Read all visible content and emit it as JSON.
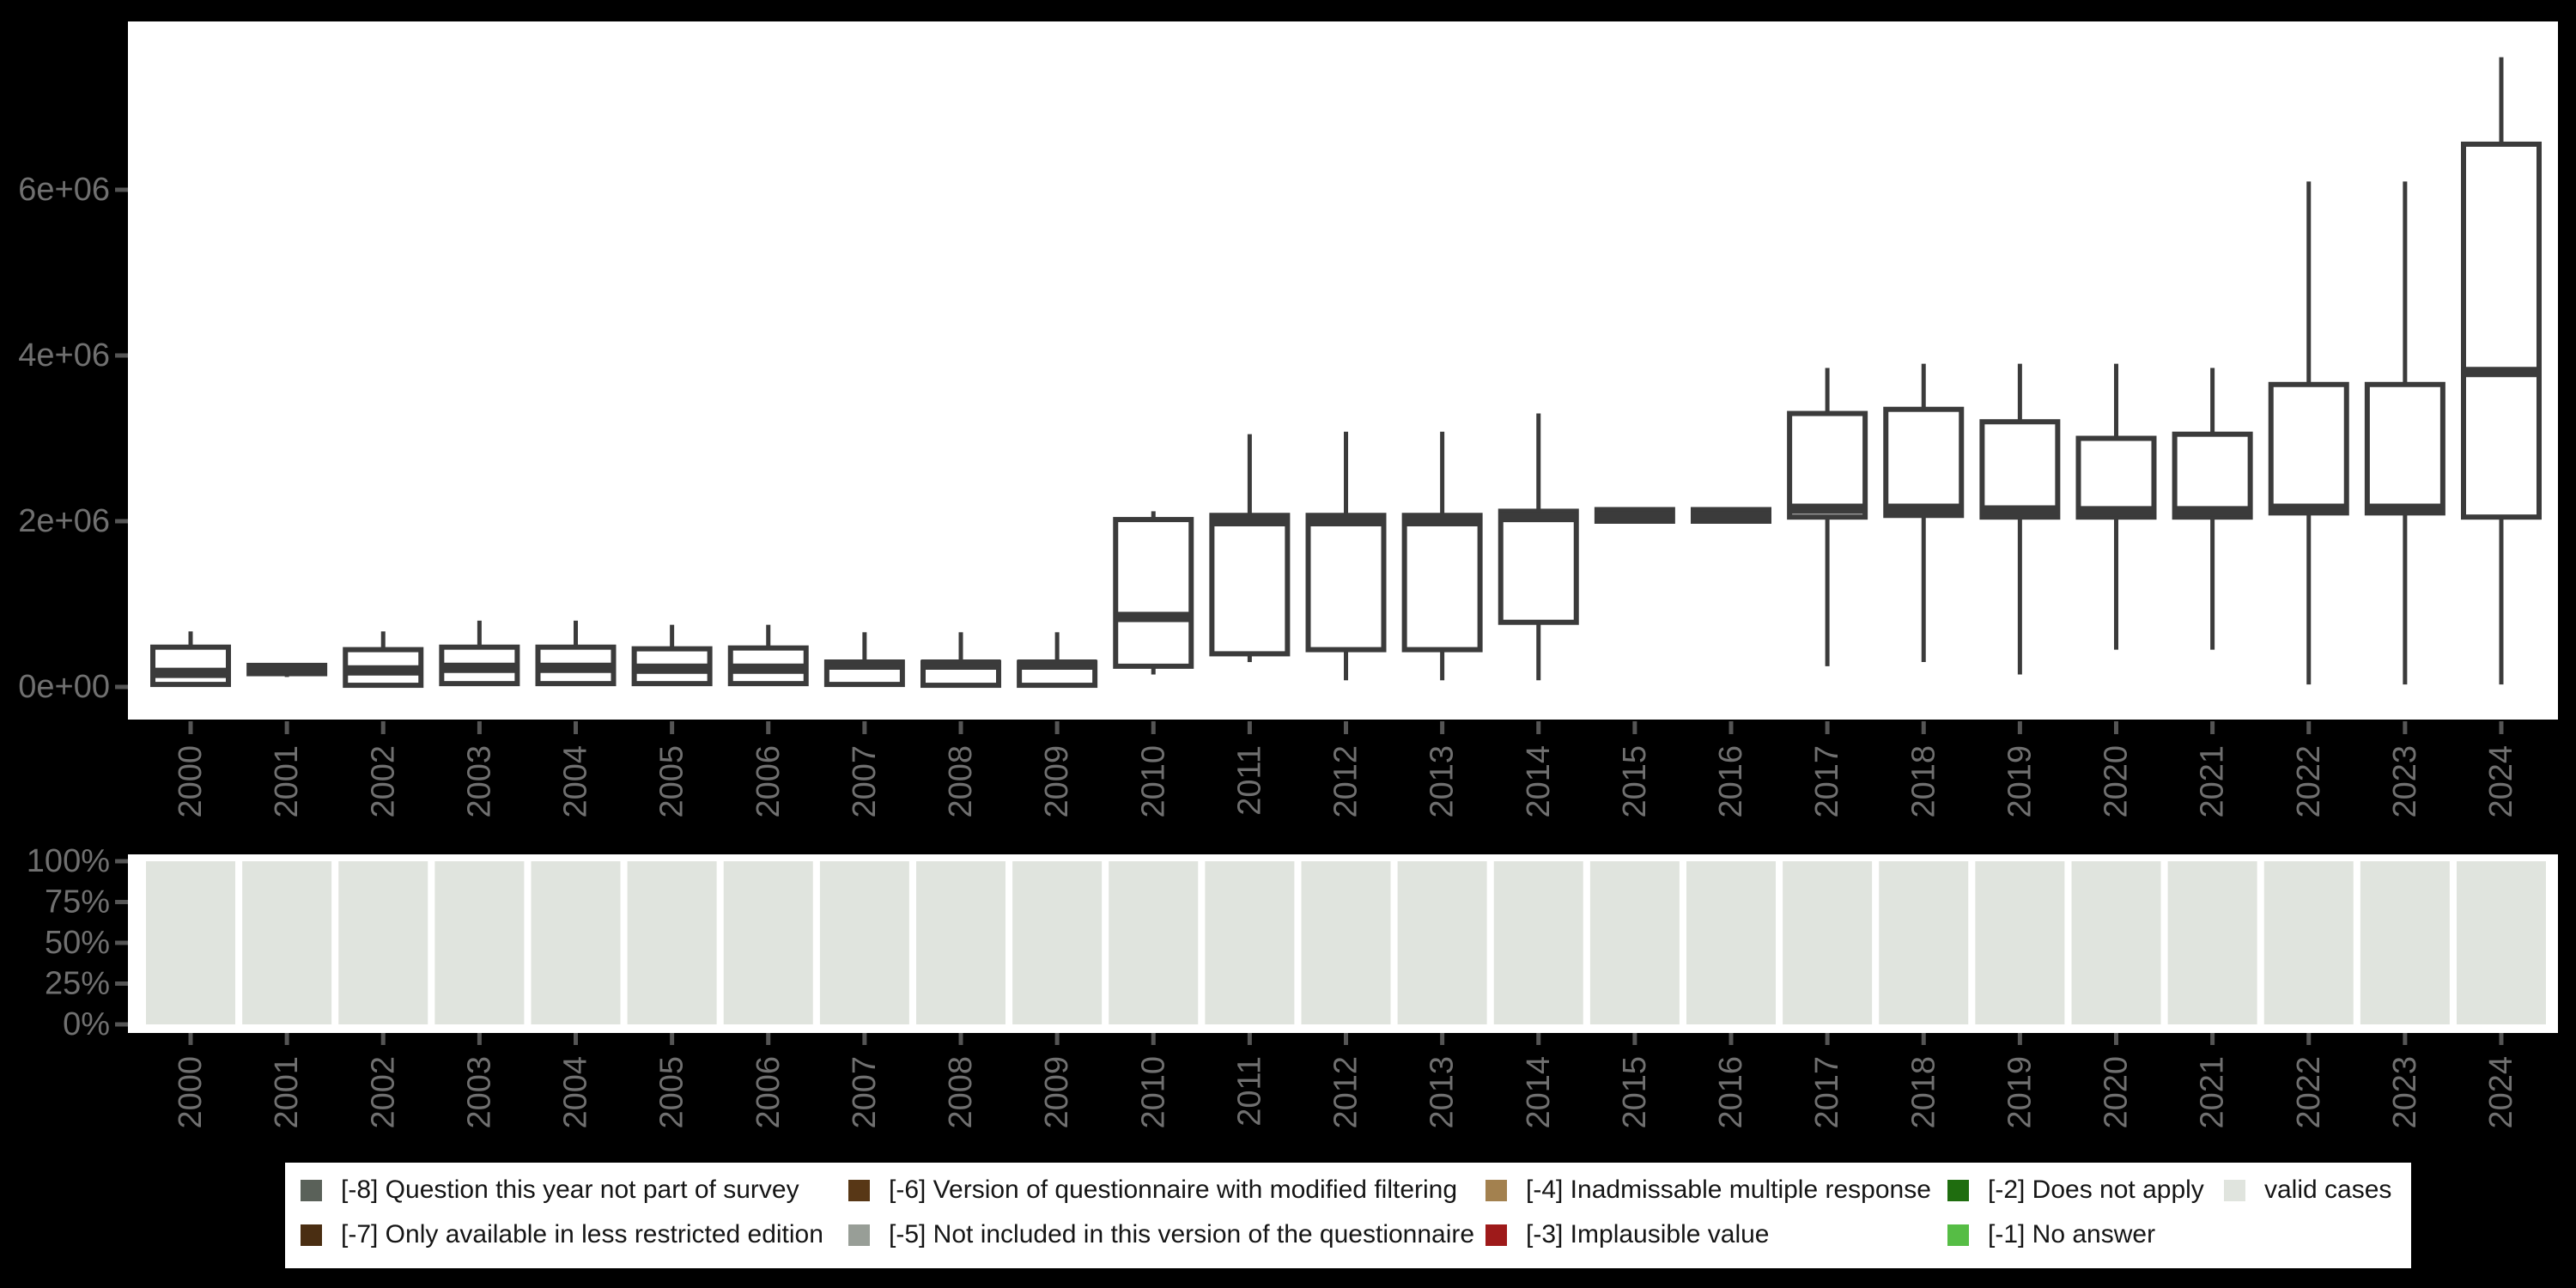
{
  "figure_name": "variable-availability-by-survey-year",
  "colors": {
    "background": "#000000",
    "panel_background": "#ffffff",
    "box_stroke": "#3b3b3b",
    "axis_text": "#707070",
    "tick_mark": "#555555",
    "legend_background": "#ffffff",
    "legend_text": "#151515"
  },
  "chart_data": [
    {
      "type": "boxplot",
      "title": "",
      "xlabel": "",
      "ylabel": "",
      "legend_position": "none",
      "grid": false,
      "ylim": [
        -390000,
        8030000
      ],
      "y_ticks": [
        "0e+00",
        "2e+06",
        "4e+06",
        "6e+06"
      ],
      "y_tick_values": [
        0,
        2000000,
        4000000,
        6000000
      ],
      "categories": [
        "2000",
        "2001",
        "2002",
        "2003",
        "2004",
        "2005",
        "2006",
        "2007",
        "2008",
        "2009",
        "2010",
        "2011",
        "2012",
        "2013",
        "2014",
        "2015",
        "2016",
        "2017",
        "2018",
        "2019",
        "2020",
        "2021",
        "2022",
        "2023",
        "2024"
      ],
      "boxes": [
        {
          "year": "2000",
          "low": 10000,
          "q1": 30000,
          "median": 170000,
          "q3": 480000,
          "high": 670000
        },
        {
          "year": "2001",
          "low": 120000,
          "q1": 160000,
          "median": 210000,
          "q3": 260000,
          "high": 260000
        },
        {
          "year": "2002",
          "low": 10000,
          "q1": 20000,
          "median": 200000,
          "q3": 450000,
          "high": 670000
        },
        {
          "year": "2003",
          "low": 20000,
          "q1": 40000,
          "median": 230000,
          "q3": 480000,
          "high": 800000
        },
        {
          "year": "2004",
          "low": 20000,
          "q1": 40000,
          "median": 230000,
          "q3": 480000,
          "high": 800000
        },
        {
          "year": "2005",
          "low": 20000,
          "q1": 40000,
          "median": 220000,
          "q3": 460000,
          "high": 750000
        },
        {
          "year": "2006",
          "low": 20000,
          "q1": 40000,
          "median": 220000,
          "q3": 470000,
          "high": 750000
        },
        {
          "year": "2007",
          "low": 10000,
          "q1": 30000,
          "median": 270000,
          "q3": 300000,
          "high": 660000
        },
        {
          "year": "2008",
          "low": 10000,
          "q1": 20000,
          "median": 270000,
          "q3": 295000,
          "high": 660000
        },
        {
          "year": "2009",
          "low": 10000,
          "q1": 20000,
          "median": 270000,
          "q3": 295000,
          "high": 660000
        },
        {
          "year": "2010",
          "low": 150000,
          "q1": 250000,
          "median": 845000,
          "q3": 2020000,
          "high": 2120000
        },
        {
          "year": "2011",
          "low": 300000,
          "q1": 400000,
          "median": 2000000,
          "q3": 2070000,
          "high": 3050000
        },
        {
          "year": "2012",
          "low": 80000,
          "q1": 450000,
          "median": 2000000,
          "q3": 2070000,
          "high": 3080000
        },
        {
          "year": "2013",
          "low": 80000,
          "q1": 450000,
          "median": 2000000,
          "q3": 2070000,
          "high": 3080000
        },
        {
          "year": "2014",
          "low": 80000,
          "q1": 780000,
          "median": 2050000,
          "q3": 2120000,
          "high": 3300000
        },
        {
          "year": "2015",
          "low": 2000000,
          "q1": 2000000,
          "median": 2060000,
          "q3": 2140000,
          "high": 2140000
        },
        {
          "year": "2016",
          "low": 2000000,
          "q1": 2000000,
          "median": 2060000,
          "q3": 2140000,
          "high": 2140000
        },
        {
          "year": "2017",
          "low": 250000,
          "q1": 2050000,
          "median": 2150000,
          "q3": 3300000,
          "high": 3850000
        },
        {
          "year": "2018",
          "low": 300000,
          "q1": 2070000,
          "median": 2150000,
          "q3": 3350000,
          "high": 3900000
        },
        {
          "year": "2019",
          "low": 150000,
          "q1": 2050000,
          "median": 2130000,
          "q3": 3200000,
          "high": 3900000
        },
        {
          "year": "2020",
          "low": 450000,
          "q1": 2050000,
          "median": 2120000,
          "q3": 3000000,
          "high": 3900000
        },
        {
          "year": "2021",
          "low": 450000,
          "q1": 2050000,
          "median": 2120000,
          "q3": 3050000,
          "high": 3850000
        },
        {
          "year": "2022",
          "low": 30000,
          "q1": 2100000,
          "median": 2150000,
          "q3": 3650000,
          "high": 6100000
        },
        {
          "year": "2023",
          "low": 30000,
          "q1": 2100000,
          "median": 2150000,
          "q3": 3650000,
          "high": 6100000
        },
        {
          "year": "2024",
          "low": 30000,
          "q1": 2050000,
          "median": 3800000,
          "q3": 6550000,
          "high": 7600000
        }
      ]
    },
    {
      "type": "bar",
      "stacked": true,
      "title": "",
      "xlabel": "",
      "ylabel": "",
      "grid": false,
      "ylim": [
        0,
        100
      ],
      "y_ticks": [
        "0%",
        "25%",
        "50%",
        "75%",
        "100%"
      ],
      "y_tick_values": [
        0,
        25,
        50,
        75,
        100
      ],
      "categories": [
        "2000",
        "2001",
        "2002",
        "2003",
        "2004",
        "2005",
        "2006",
        "2007",
        "2008",
        "2009",
        "2010",
        "2011",
        "2012",
        "2013",
        "2014",
        "2015",
        "2016",
        "2017",
        "2018",
        "2019",
        "2020",
        "2021",
        "2022",
        "2023",
        "2024"
      ],
      "series": [
        {
          "name": "valid cases",
          "color": "#e0e4de",
          "values": [
            100,
            100,
            100,
            100,
            100,
            100,
            100,
            100,
            100,
            100,
            100,
            100,
            100,
            100,
            100,
            100,
            100,
            100,
            100,
            100,
            100,
            100,
            100,
            100,
            100
          ]
        }
      ]
    }
  ],
  "legend": {
    "rows": [
      [
        {
          "label": "[-8] Question this year not part of survey",
          "color": "#5a6159"
        },
        {
          "label": "[-6] Version of questionnaire with modified filtering",
          "color": "#583716"
        },
        {
          "label": "[-4] Inadmissable multiple response",
          "color": "#a3814f"
        },
        {
          "label": "[-2] Does not apply",
          "color": "#1f6d0f"
        },
        {
          "label": "valid cases",
          "color": "#e0e4de"
        }
      ],
      [
        {
          "label": "[-7] Only available in less restricted edition",
          "color": "#4a2e12"
        },
        {
          "label": "[-5] Not included in this version of the questionnaire",
          "color": "#989e97"
        },
        {
          "label": "[-3] Implausible value",
          "color": "#9e1a1a"
        },
        {
          "label": "[-1] No answer",
          "color": "#56bd45"
        }
      ]
    ]
  }
}
